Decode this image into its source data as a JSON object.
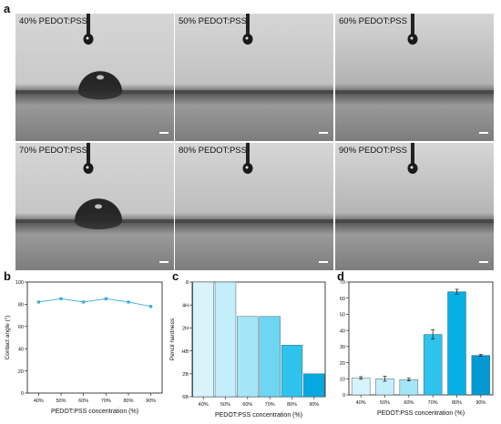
{
  "panels": {
    "a": "a",
    "b": "b",
    "c": "c",
    "d": "d"
  },
  "photos": [
    {
      "caption": "40% PEDOT:PSS",
      "tone": "#c9c9c9"
    },
    {
      "caption": "50% PEDOT:PSS",
      "tone": "#c2c2c2"
    },
    {
      "caption": "60% PEDOT:PSS",
      "tone": "#b3b3b3"
    },
    {
      "caption": "70% PEDOT:PSS",
      "tone": "#c6c6c6"
    },
    {
      "caption": "80% PEDOT:PSS",
      "tone": "#bdbdbd"
    },
    {
      "caption": "90% PEDOT:PSS",
      "tone": "#b5b5b5"
    }
  ],
  "chart_data": [
    {
      "type": "line",
      "panel": "b",
      "categories": [
        "40%",
        "50%",
        "60%",
        "70%",
        "80%",
        "90%"
      ],
      "values": [
        82,
        85,
        82,
        85,
        82,
        78
      ],
      "errors": [
        1,
        1,
        1,
        1.5,
        1,
        1.5
      ],
      "ylabel": "Contact angle (°)",
      "xlabel": "PEDOT:PSS concentration (%)",
      "ylim": [
        0,
        100
      ],
      "yticks": [
        0,
        20,
        40,
        60,
        80,
        100
      ],
      "color": "#3aa9e0"
    },
    {
      "type": "bar",
      "panel": "c",
      "categories": [
        "40%",
        "50%",
        "60%",
        "70%",
        "80%",
        "90%"
      ],
      "values": [
        8,
        8,
        2,
        2,
        -3,
        -8
      ],
      "tick_labels": [
        "8",
        "4H",
        "2H",
        "HB",
        "2B",
        "6B"
      ],
      "ylabel": "Pencil hardness",
      "xlabel": "PEDOT:PSS concentration (%)",
      "colors": [
        "#d8f3fb",
        "#c4eef9",
        "#a4e5f6",
        "#6ed6f2",
        "#2ec2ec",
        "#05a9df"
      ]
    },
    {
      "type": "bar",
      "panel": "d",
      "categories": [
        "40%",
        "50%",
        "60%",
        "70%",
        "80%",
        "90%"
      ],
      "values": [
        10.5,
        10.0,
        9.5,
        37.5,
        64.0,
        24.5
      ],
      "errors": [
        0.8,
        1.5,
        0.8,
        2.8,
        1.5,
        0.6
      ],
      "ylabel": "Gloss (GU)",
      "xlabel": "PEDOT:PSS concentration (%)",
      "ylim": [
        0,
        70
      ],
      "yticks": [
        0,
        10,
        20,
        30,
        40,
        50,
        60,
        70
      ],
      "colors": [
        "#d8f3fb",
        "#c4eef9",
        "#a4e5f6",
        "#2ec2ec",
        "#05b1e4",
        "#0399d3"
      ]
    }
  ]
}
